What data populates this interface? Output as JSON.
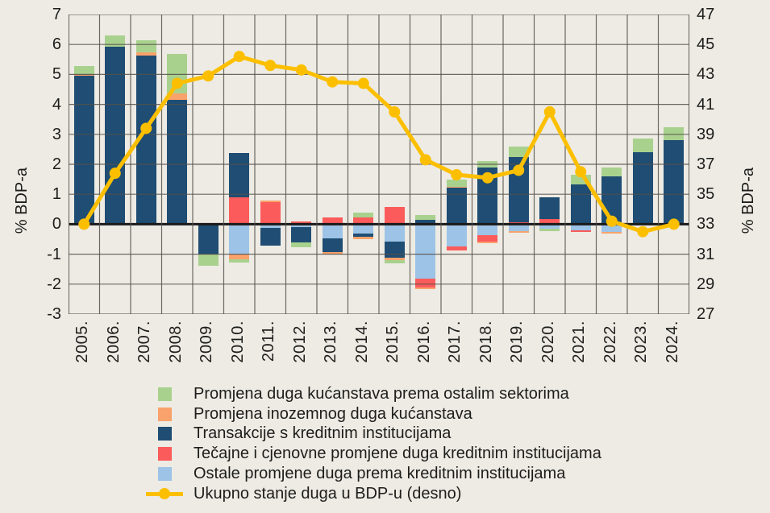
{
  "figure": {
    "background": "#EDEBE4",
    "grid_color": "#55514B",
    "zero_line_color": "#1A1A1A",
    "text_color": "#1D1D1B"
  },
  "chart_data": {
    "type": "bar",
    "subtype": "stacked-bars-with-line",
    "categories": [
      "2005.",
      "2006.",
      "2007.",
      "2008.",
      "2009.",
      "2010.",
      "2011.",
      "2012.",
      "2013.",
      "2014.",
      "2015.",
      "2016.",
      "2017.",
      "2018.",
      "2019.",
      "2020.",
      "2021.",
      "2022.",
      "2023.",
      "2024."
    ],
    "left_axis": {
      "label": "% BDP-a",
      "min": -3,
      "max": 7,
      "ticks": [
        7,
        6,
        5,
        4,
        3,
        2,
        1,
        0,
        -1,
        -2,
        -3
      ]
    },
    "right_axis": {
      "label": "% BDP-a",
      "min": 27,
      "max": 47,
      "ticks": [
        47,
        45,
        43,
        41,
        39,
        37,
        35,
        33,
        31,
        29,
        27
      ]
    },
    "grid": true,
    "legend_position": "bottom-left",
    "stack_order_positive": [
      "fx_price",
      "transactions",
      "foreign_debt",
      "other_sectors"
    ],
    "stack_order_negative": [
      "other_changes",
      "transactions",
      "fx_price",
      "foreign_debt",
      "other_sectors"
    ],
    "series": [
      {
        "key": "other_sectors",
        "name": "Promjena duga kućanstava prema ostalim sektorima",
        "type": "bar",
        "color": "#A9D18E",
        "values": [
          0.26,
          0.36,
          0.42,
          1.33,
          -0.4,
          -0.1,
          0.0,
          -0.15,
          0.0,
          0.18,
          -0.11,
          0.16,
          0.22,
          0.23,
          0.35,
          -0.06,
          0.3,
          0.29,
          0.47,
          0.44
        ]
      },
      {
        "key": "foreign_debt",
        "name": "Promjena inozemnog duga kućanstava",
        "type": "bar",
        "color": "#F9A26B",
        "values": [
          0.06,
          0.0,
          0.11,
          0.22,
          0.0,
          -0.18,
          0.04,
          0.0,
          -0.06,
          -0.07,
          -0.08,
          -0.06,
          0.05,
          -0.06,
          -0.07,
          0.0,
          0.0,
          -0.06,
          0.0,
          0.0
        ]
      },
      {
        "key": "transactions",
        "name": "Transakcije s kreditnim institucijama",
        "type": "bar",
        "color": "#1F4D73",
        "values": [
          4.95,
          5.93,
          5.62,
          4.14,
          -1.0,
          1.48,
          -0.6,
          -0.52,
          -0.47,
          -0.11,
          -0.54,
          0.15,
          1.21,
          1.88,
          2.18,
          0.73,
          1.34,
          1.61,
          2.4,
          2.8
        ]
      },
      {
        "key": "fx_price",
        "name": "Tečajne i cjenovne promjene duga kreditnim institucijama",
        "type": "bar",
        "color": "#FB5B5B",
        "values": [
          0.0,
          0.0,
          0.0,
          0.0,
          0.0,
          0.9,
          0.75,
          0.1,
          0.22,
          0.22,
          0.58,
          -0.27,
          -0.14,
          -0.22,
          0.07,
          0.18,
          -0.05,
          0.0,
          0.0,
          0.0
        ]
      },
      {
        "key": "other_changes",
        "name": "Ostale promjene duga prema kreditnim institucijama",
        "type": "bar",
        "color": "#9DC3E6",
        "values": [
          0.0,
          0.0,
          0.0,
          0.0,
          0.0,
          -1.0,
          -0.12,
          -0.1,
          -0.47,
          -0.31,
          -0.57,
          -1.83,
          -0.73,
          -0.36,
          -0.22,
          -0.16,
          -0.2,
          -0.25,
          0.0,
          0.0
        ]
      },
      {
        "key": "total_debt",
        "name": "Ukupno stanje duga u BDP-u (desno)",
        "type": "line",
        "axis": "right",
        "color": "#FCBF00",
        "values": [
          33.0,
          36.4,
          39.4,
          42.4,
          42.9,
          44.2,
          43.6,
          43.3,
          42.5,
          42.4,
          40.5,
          37.3,
          36.3,
          36.1,
          36.6,
          40.5,
          36.5,
          33.2,
          32.5,
          33.0
        ]
      }
    ]
  }
}
